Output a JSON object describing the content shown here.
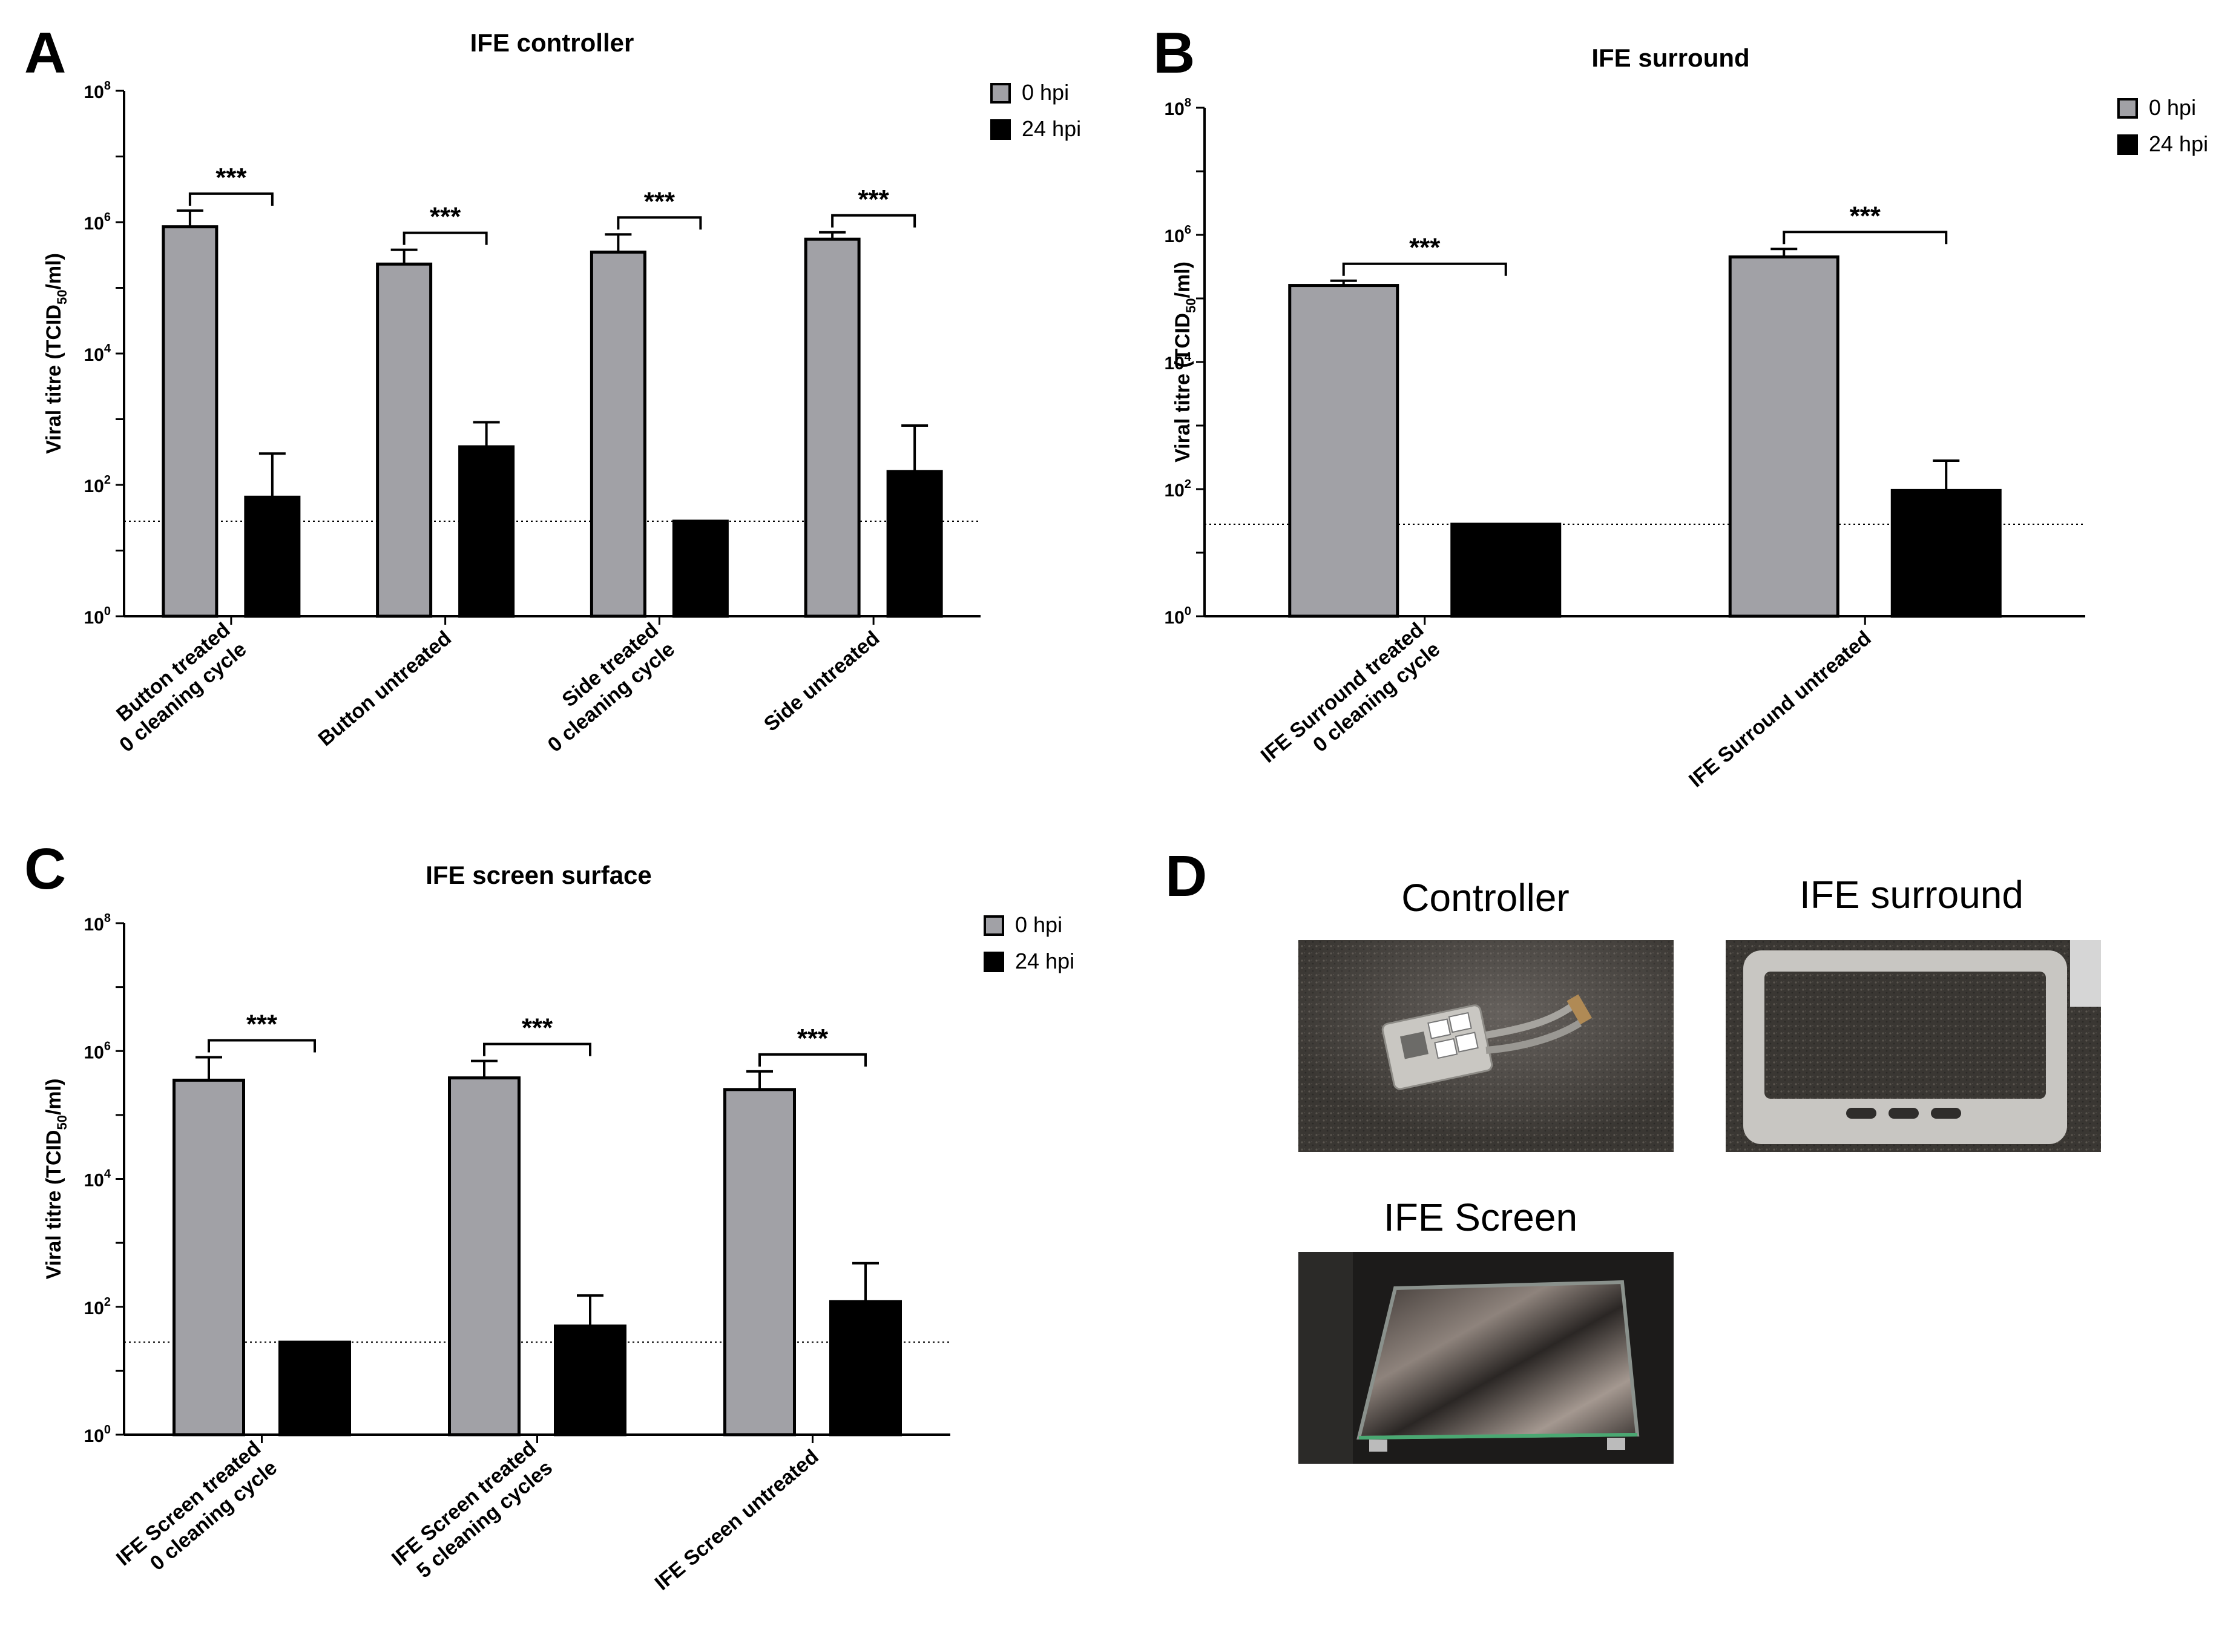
{
  "panel_d": {
    "letter": "D",
    "photos": [
      {
        "title": "Controller",
        "subject": "controller"
      },
      {
        "title": "IFE surround",
        "subject": "surround"
      },
      {
        "title": "IFE Screen",
        "subject": "screen"
      }
    ]
  },
  "colors": {
    "hpi0": "#a1a1a6",
    "hpi24": "#000000",
    "axis": "#000000"
  },
  "chart_data": [
    {
      "panel": "A",
      "type": "bar",
      "title": "IFE controller",
      "xlabel": "",
      "ylabel": "Viral titre (TCID50/ml)",
      "ylabel_parts": [
        "Viral titre (TCID",
        "50",
        "/ml)"
      ],
      "yscale": "log",
      "ylim": [
        1,
        100000000
      ],
      "yticks": [
        {
          "base": "10",
          "exp": "0"
        },
        {
          "base": "10",
          "exp": "2"
        },
        {
          "base": "10",
          "exp": "4"
        },
        {
          "base": "10",
          "exp": "6"
        },
        {
          "base": "10",
          "exp": "8"
        }
      ],
      "detection_limit": 28,
      "legend": {
        "entries": [
          "0 hpi",
          "24 hpi"
        ],
        "position": "top-right"
      },
      "categories": [
        [
          "Button treated",
          "0 cleaning cycle"
        ],
        [
          "Button untreated"
        ],
        [
          "Side treated",
          "0 cleaning cycle"
        ],
        [
          "Side untreated"
        ]
      ],
      "series": [
        {
          "name": "0 hpi",
          "values": [
            850000,
            230000,
            350000,
            550000
          ],
          "error_upper": [
            1500000,
            380000,
            650000,
            700000
          ]
        },
        {
          "name": "24 hpi",
          "values": [
            65,
            380,
            28,
            160
          ],
          "error_upper": [
            300,
            900,
            28,
            800
          ]
        }
      ],
      "significance": [
        "***",
        "***",
        "***",
        "***"
      ]
    },
    {
      "panel": "B",
      "type": "bar",
      "title": "IFE surround",
      "xlabel": "",
      "ylabel": "Viral titre (TCID50/ml)",
      "ylabel_parts": [
        "Viral titre (TCID",
        "50",
        "/ml)"
      ],
      "yscale": "log",
      "ylim": [
        1,
        100000000
      ],
      "yticks": [
        {
          "base": "10",
          "exp": "0"
        },
        {
          "base": "10",
          "exp": "2"
        },
        {
          "base": "10",
          "exp": "4"
        },
        {
          "base": "10",
          "exp": "6"
        },
        {
          "base": "10",
          "exp": "8"
        }
      ],
      "detection_limit": 28,
      "legend": {
        "entries": [
          "0 hpi",
          "24 hpi"
        ],
        "position": "top-right"
      },
      "categories": [
        [
          "IFE Surround treated",
          "0 cleaning cycle"
        ],
        [
          "IFE Surround untreated"
        ]
      ],
      "series": [
        {
          "name": "0 hpi",
          "values": [
            160000,
            450000
          ],
          "error_upper": [
            190000,
            600000
          ]
        },
        {
          "name": "24 hpi",
          "values": [
            28,
            95
          ],
          "error_upper": [
            28,
            280
          ]
        }
      ],
      "significance": [
        "***",
        "***"
      ]
    },
    {
      "panel": "C",
      "type": "bar",
      "title": "IFE screen surface",
      "xlabel": "",
      "ylabel": "Viral titre (TCID50/ml)",
      "ylabel_parts": [
        "Viral titre (TCID",
        "50",
        "/ml)"
      ],
      "yscale": "log",
      "ylim": [
        1,
        100000000
      ],
      "yticks": [
        {
          "base": "10",
          "exp": "0"
        },
        {
          "base": "10",
          "exp": "2"
        },
        {
          "base": "10",
          "exp": "4"
        },
        {
          "base": "10",
          "exp": "6"
        },
        {
          "base": "10",
          "exp": "8"
        }
      ],
      "detection_limit": 28,
      "legend": {
        "entries": [
          "0 hpi",
          "24 hpi"
        ],
        "position": "top-right"
      },
      "categories": [
        [
          "IFE Screen treated",
          "0 cleaning cycle"
        ],
        [
          "IFE Screen treated",
          "5 cleaning cycles"
        ],
        [
          "IFE Screen untreated"
        ]
      ],
      "series": [
        {
          "name": "0 hpi",
          "values": [
            350000,
            380000,
            250000
          ],
          "error_upper": [
            800000,
            700000,
            480000
          ]
        },
        {
          "name": "24 hpi",
          "values": [
            28,
            50,
            120
          ],
          "error_upper": [
            28,
            150,
            480
          ]
        }
      ],
      "significance": [
        "***",
        "***",
        "***"
      ]
    }
  ]
}
